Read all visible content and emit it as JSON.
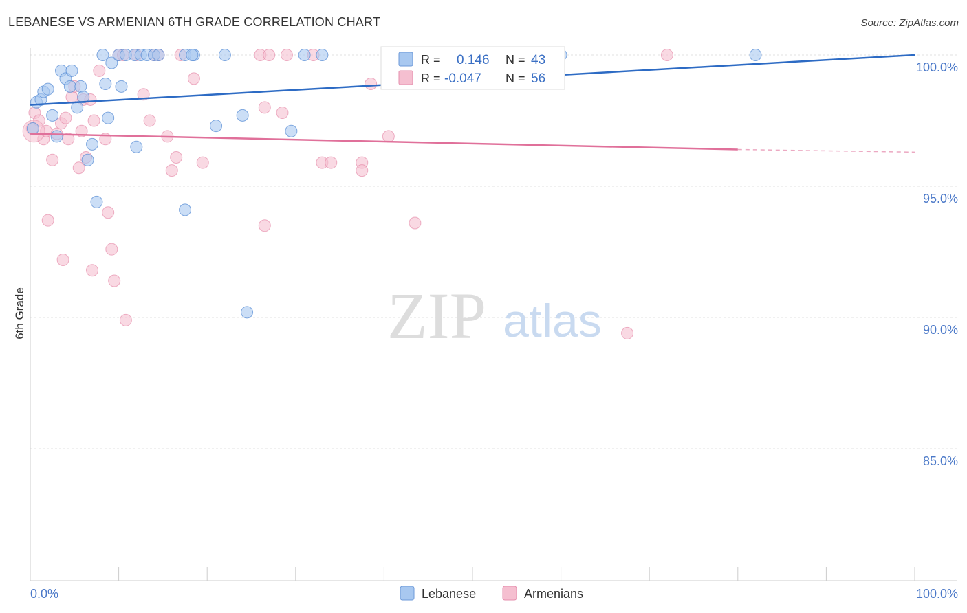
{
  "header": {
    "title": "LEBANESE VS ARMENIAN 6TH GRADE CORRELATION CHART",
    "source": "Source: ZipAtlas.com"
  },
  "watermark": {
    "zip": "ZIP",
    "atlas": "atlas"
  },
  "legend_box": {
    "rows": [
      {
        "r_label": "R =",
        "r_value": "0.146",
        "n_label": "N =",
        "n_value": "43",
        "color": "#a8c8f0"
      },
      {
        "r_label": "R =",
        "r_value": "-0.047",
        "n_label": "N =",
        "n_value": "56",
        "color": "#f5b8cc"
      }
    ]
  },
  "colors": {
    "lebanese_fill": "#a8c8f0",
    "lebanese_stroke": "#5b8fd6",
    "lebanese_line": "#2d6bc4",
    "armenian_fill": "#f5bfd0",
    "armenian_stroke": "#e27fa0",
    "armenian_line": "#e0709a",
    "axis_text": "#4a78c8",
    "legend_value": "#3a6fc4"
  },
  "chart_data": {
    "type": "scatter",
    "title": "LEBANESE VS ARMENIAN 6TH GRADE CORRELATION CHART",
    "ylabel": "6th Grade",
    "xlabel": "",
    "xlim": [
      0,
      100
    ],
    "ylim": [
      80,
      100.5
    ],
    "x_tick_labels": [
      "0.0%",
      "100.0%"
    ],
    "y_ticks": [
      {
        "value": 100,
        "label": "100.0%"
      },
      {
        "value": 95,
        "label": "95.0%"
      },
      {
        "value": 90,
        "label": "90.0%"
      },
      {
        "value": 85,
        "label": "85.0%"
      }
    ],
    "grid": true,
    "legend_placement": "bottom-center",
    "series": [
      {
        "name": "Lebanese",
        "points": [
          [
            0.3,
            97.2
          ],
          [
            0.7,
            98.2
          ],
          [
            1.2,
            98.3
          ],
          [
            1.5,
            98.6
          ],
          [
            2.0,
            98.7
          ],
          [
            2.5,
            97.7
          ],
          [
            3.0,
            96.9
          ],
          [
            3.5,
            99.4
          ],
          [
            4.0,
            99.1
          ],
          [
            4.5,
            98.8
          ],
          [
            4.7,
            99.4
          ],
          [
            5.3,
            98.0
          ],
          [
            5.7,
            98.8
          ],
          [
            6.0,
            98.4
          ],
          [
            6.5,
            96.0
          ],
          [
            7.0,
            96.6
          ],
          [
            7.5,
            94.4
          ],
          [
            8.2,
            100.0
          ],
          [
            8.5,
            98.9
          ],
          [
            8.8,
            97.6
          ],
          [
            9.2,
            99.7
          ],
          [
            10.0,
            100.0
          ],
          [
            10.3,
            98.8
          ],
          [
            10.8,
            100.0
          ],
          [
            11.8,
            100.0
          ],
          [
            12.0,
            96.5
          ],
          [
            12.5,
            100.0
          ],
          [
            13.2,
            100.0
          ],
          [
            14.0,
            100.0
          ],
          [
            14.5,
            100.0
          ],
          [
            17.5,
            100.0
          ],
          [
            18.5,
            100.0
          ],
          [
            18.3,
            100.0
          ],
          [
            17.5,
            94.1
          ],
          [
            21.0,
            97.3
          ],
          [
            22.0,
            100.0
          ],
          [
            24.0,
            97.7
          ],
          [
            24.5,
            90.2
          ],
          [
            29.5,
            97.1
          ],
          [
            31.0,
            100.0
          ],
          [
            33.0,
            100.0
          ],
          [
            60.0,
            100.0
          ],
          [
            82.0,
            100.0
          ]
        ],
        "trend": {
          "x": [
            0,
            100
          ],
          "y": [
            98.1,
            100.0
          ]
        }
      },
      {
        "name": "Armenians",
        "points": [
          [
            0.2,
            97.2
          ],
          [
            0.5,
            97.8
          ],
          [
            1.0,
            97.5
          ],
          [
            1.5,
            96.8
          ],
          [
            1.8,
            97.1
          ],
          [
            2.0,
            93.7
          ],
          [
            2.5,
            96.0
          ],
          [
            3.0,
            97.0
          ],
          [
            3.5,
            97.4
          ],
          [
            3.7,
            92.2
          ],
          [
            4.0,
            97.6
          ],
          [
            4.3,
            96.8
          ],
          [
            4.7,
            98.4
          ],
          [
            5.0,
            98.8
          ],
          [
            5.5,
            95.7
          ],
          [
            5.8,
            97.1
          ],
          [
            6.0,
            98.3
          ],
          [
            6.3,
            96.1
          ],
          [
            6.8,
            98.3
          ],
          [
            7.0,
            91.8
          ],
          [
            7.2,
            97.5
          ],
          [
            7.8,
            99.4
          ],
          [
            8.5,
            96.8
          ],
          [
            8.8,
            94.0
          ],
          [
            9.2,
            92.6
          ],
          [
            9.5,
            91.4
          ],
          [
            10.0,
            100.0
          ],
          [
            10.5,
            100.0
          ],
          [
            10.8,
            89.9
          ],
          [
            12.0,
            100.0
          ],
          [
            12.8,
            98.5
          ],
          [
            13.5,
            97.5
          ],
          [
            14.0,
            100.0
          ],
          [
            15.5,
            96.9
          ],
          [
            16.0,
            95.6
          ],
          [
            16.5,
            96.1
          ],
          [
            17.0,
            100.0
          ],
          [
            18.5,
            99.1
          ],
          [
            19.5,
            95.9
          ],
          [
            26.0,
            100.0
          ],
          [
            26.5,
            98.0
          ],
          [
            26.5,
            93.5
          ],
          [
            27.0,
            100.0
          ],
          [
            28.5,
            97.8
          ],
          [
            29.0,
            100.0
          ],
          [
            32.0,
            100.0
          ],
          [
            33.0,
            95.9
          ],
          [
            34.0,
            95.9
          ],
          [
            37.5,
            95.9
          ],
          [
            37.5,
            95.6
          ],
          [
            38.5,
            98.9
          ],
          [
            40.5,
            96.9
          ],
          [
            43.5,
            93.6
          ],
          [
            67.5,
            89.4
          ],
          [
            72.0,
            100.0
          ],
          [
            14.5,
            100.0
          ]
        ],
        "trend": {
          "x": [
            0,
            80
          ],
          "y": [
            97.0,
            96.4
          ],
          "dashed_x": [
            80,
            100
          ],
          "dashed_y": [
            96.4,
            96.3
          ]
        }
      }
    ]
  }
}
